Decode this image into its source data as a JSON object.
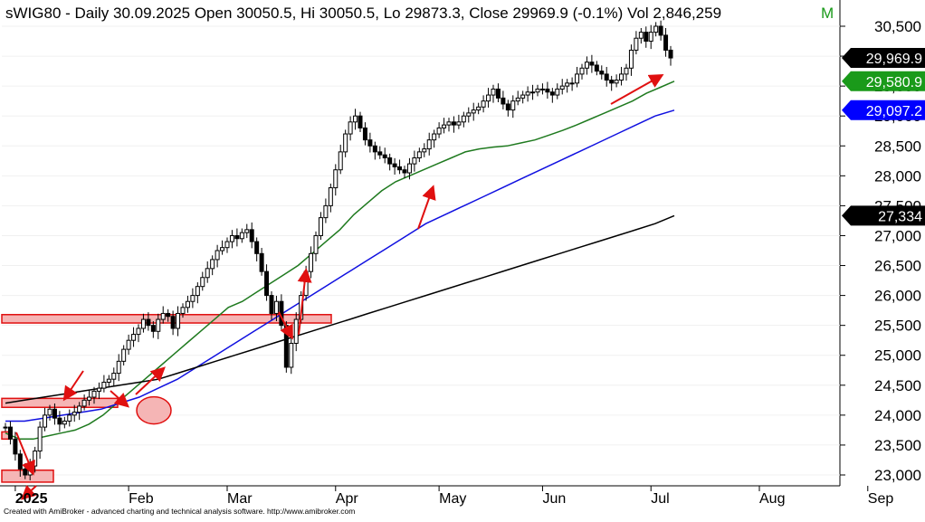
{
  "header": {
    "symbol": "sWIG80",
    "text": "sWIG80 - Daily 30.09.2025 Open 30050.5, Hi 30050.5, Lo 29873.3, Close 29969.9 (-0.1%) Vol 2,846,259",
    "flag": "M"
  },
  "footer": {
    "credit": "Created with AmiBroker - advanced charting and technical analysis software. http://www.amibroker.com"
  },
  "chart_data": {
    "type": "candlestick",
    "title": "sWIG80 - Daily 30.09.2025 Open 30050.5, Hi 30050.5, Lo 29873.3, Close 29969.9 (-0.1%) Vol 2,846,259",
    "ylim": [
      22800,
      30750
    ],
    "y_ticks": [
      "30,500",
      "30,000",
      "29,500",
      "29,000",
      "28,500",
      "28,000",
      "27,500",
      "27,000",
      "26,500",
      "26,000",
      "25,500",
      "25,000",
      "24,500",
      "24,000",
      "23,500",
      "23,000"
    ],
    "y_tick_values": [
      30500,
      30000,
      29500,
      29000,
      28500,
      28000,
      27500,
      27000,
      26500,
      26000,
      25500,
      25000,
      24500,
      24000,
      23500,
      23000
    ],
    "x_ticks": [
      "2025",
      "Feb",
      "Mar",
      "Apr",
      "May",
      "Jun",
      "Jul",
      "Aug",
      "Sep"
    ],
    "x_tick_index": [
      2,
      25,
      45,
      67,
      88,
      109,
      131,
      153,
      175
    ],
    "last_close": 29969.9,
    "closes": [
      23800,
      23600,
      23350,
      23100,
      23000,
      23150,
      23400,
      23800,
      24000,
      24100,
      23950,
      23850,
      23900,
      24000,
      24050,
      24150,
      24250,
      24300,
      24400,
      24450,
      24550,
      24600,
      24700,
      24900,
      25100,
      25250,
      25350,
      25450,
      25600,
      25500,
      25400,
      25600,
      25700,
      25650,
      25450,
      25700,
      25800,
      25900,
      26000,
      26150,
      26300,
      26450,
      26600,
      26750,
      26800,
      26900,
      27000,
      26950,
      27050,
      27100,
      26900,
      26700,
      26400,
      26000,
      25700,
      25900,
      25500,
      24800,
      25200,
      25600,
      26000,
      26400,
      26700,
      27000,
      27300,
      27500,
      27800,
      28100,
      28400,
      28700,
      28900,
      29000,
      28800,
      28600,
      28500,
      28400,
      28350,
      28300,
      28200,
      28150,
      28100,
      28050,
      28200,
      28300,
      28400,
      28450,
      28600,
      28700,
      28800,
      28850,
      28900,
      28850,
      28900,
      29000,
      29050,
      29100,
      29150,
      29250,
      29350,
      29450,
      29300,
      29200,
      29100,
      29250,
      29300,
      29350,
      29400,
      29400,
      29450,
      29450,
      29400,
      29350,
      29450,
      29500,
      29550,
      29550,
      29700,
      29800,
      29900,
      29850,
      29750,
      29700,
      29600,
      29550,
      29600,
      29700,
      29800,
      30100,
      30300,
      30400,
      30250,
      30400,
      30500,
      30350,
      30100,
      29970
    ],
    "series": [
      {
        "name": "",
        "color": "#1f7a1f",
        "values": [
          23700,
          23600,
          23600,
          23650,
          23700,
          23750,
          23850,
          24000,
          24200,
          24400,
          24600,
          24800,
          25000,
          25200,
          25400,
          25600,
          25800,
          25900,
          26050,
          26200,
          26350,
          26500,
          26700,
          26900,
          27100,
          27350,
          27550,
          27750,
          27900,
          28000,
          28100,
          28200,
          28300,
          28400,
          28450,
          28480,
          28500,
          28550,
          28600,
          28680,
          28760,
          28850,
          28950,
          29050,
          29150,
          29250,
          29380,
          29480,
          29580
        ]
      },
      {
        "name": "",
        "color": "#1010e0",
        "values": [
          23900,
          23900,
          23950,
          24000,
          24050,
          24100,
          24200,
          24300,
          24450,
          24600,
          24800,
          25000,
          25200,
          25400,
          25600,
          25800,
          26000,
          26200,
          26400,
          26600,
          26800,
          27000,
          27200,
          27350,
          27500,
          27650,
          27800,
          27950,
          28100,
          28250,
          28400,
          28550,
          28700,
          28850,
          29000,
          29097
        ]
      },
      {
        "name": "",
        "color": "#000000",
        "values": [
          24200,
          24250,
          24300,
          24350,
          24400,
          24450,
          24500,
          24550,
          24600,
          24700,
          24800,
          24900,
          25000,
          25100,
          25200,
          25300,
          25400,
          25500,
          25600,
          25700,
          25800,
          25900,
          26000,
          26100,
          26200,
          26300,
          26400,
          26500,
          26600,
          26700,
          26800,
          26900,
          27000,
          27100,
          27200,
          27334
        ]
      }
    ],
    "price_labels": [
      {
        "text": "29,969.9",
        "value": 29969.9,
        "bg": "#000000"
      },
      {
        "text": "29,580.9",
        "value": 29580.9,
        "bg": "#1a9a1a"
      },
      {
        "text": "29,097.2",
        "value": 29097.2,
        "bg": "#0000ff"
      },
      {
        "text": "27,334",
        "value": 27334,
        "bg": "#000000"
      }
    ]
  }
}
